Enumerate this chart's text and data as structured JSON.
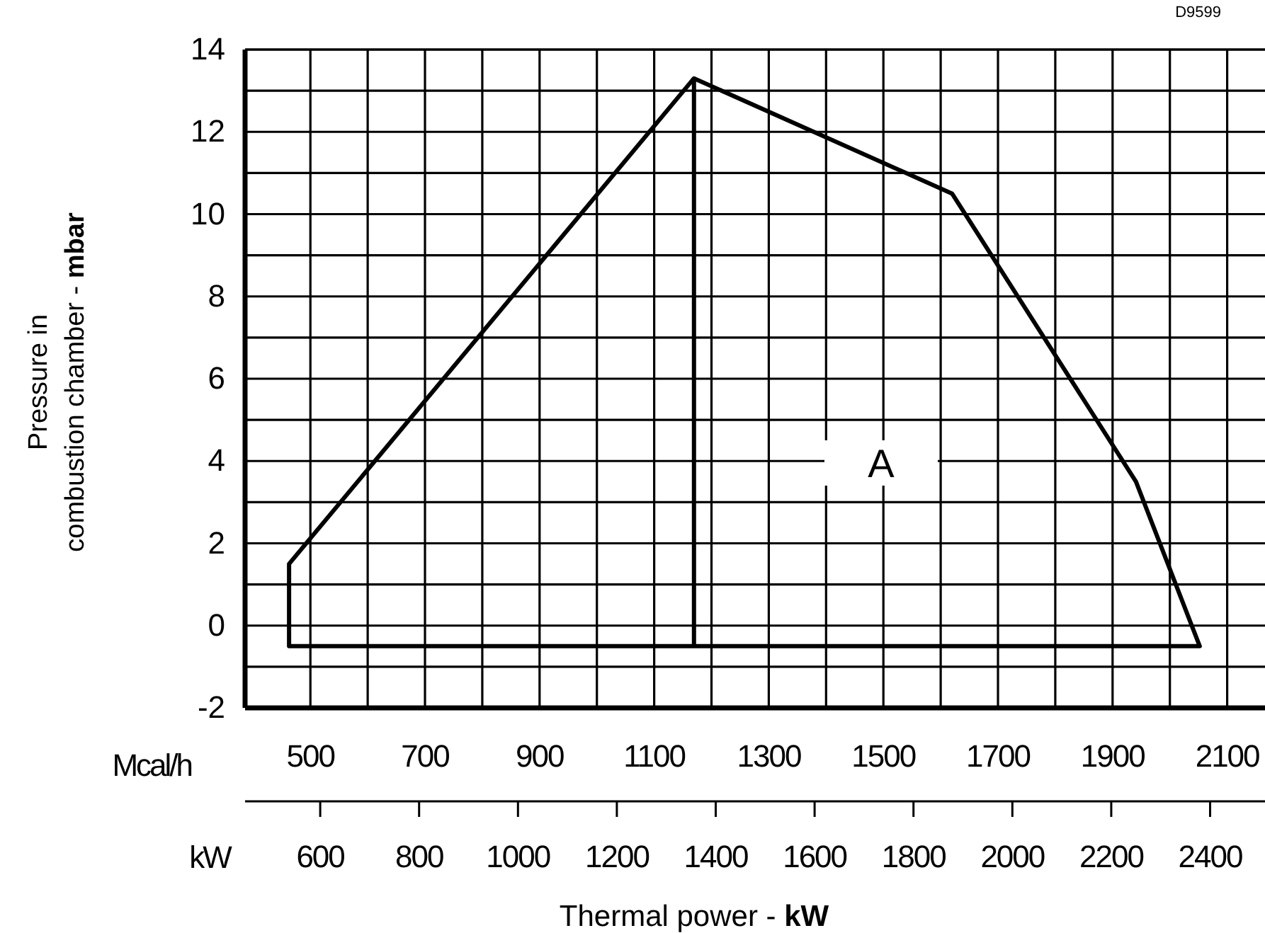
{
  "chart_data": {
    "type": "line",
    "xlabel": "Thermal power - kW",
    "ylabel": "Pressure in combustion chamber - mbar",
    "x2label": "Mcal/h",
    "xlim": [
      448,
      2511
    ],
    "xticks": [
      600,
      800,
      1000,
      1200,
      1400,
      1600,
      1800,
      2000,
      2200,
      2400
    ],
    "x2lim": [
      386,
      2166
    ],
    "x2ticks": [
      500,
      {
        "value": 600,
        "label": null
      },
      700,
      {
        "value": 800,
        "label": null
      },
      900,
      {
        "value": 1000,
        "label": null
      },
      1100,
      {
        "value": 1200,
        "label": null
      },
      1300,
      {
        "value": 1400,
        "label": null
      },
      1500,
      {
        "value": 1600,
        "label": null
      },
      1700,
      {
        "value": 1800,
        "label": null
      },
      1900,
      {
        "value": 2000,
        "label": null
      },
      2100
    ],
    "ylim": [
      -2,
      14
    ],
    "yticks": [
      -2,
      {
        "value": -1,
        "label": null
      },
      0,
      {
        "value": 1,
        "label": null
      },
      2,
      {
        "value": 3,
        "label": null
      },
      4,
      {
        "value": 5,
        "label": null
      },
      6,
      {
        "value": 7,
        "label": null
      },
      8,
      {
        "value": 9,
        "label": null
      },
      10,
      {
        "value": 11,
        "label": null
      },
      12,
      {
        "value": 13,
        "label": null
      },
      14
    ],
    "grid": true,
    "marker": "none",
    "line_style": "solid",
    "series": [
      {
        "color": "#000000",
        "x": [
          1356,
          1356,
          537,
          537,
          1356,
          1878,
          2250,
          2379,
          1356
        ],
        "values": [
          13.3,
          -0.5,
          -0.5,
          1.5,
          13.3,
          10.5,
          3.5,
          -0.5,
          -0.5
        ]
      }
    ],
    "annotations": [
      "D9599",
      "kW",
      "A"
    ]
  }
}
